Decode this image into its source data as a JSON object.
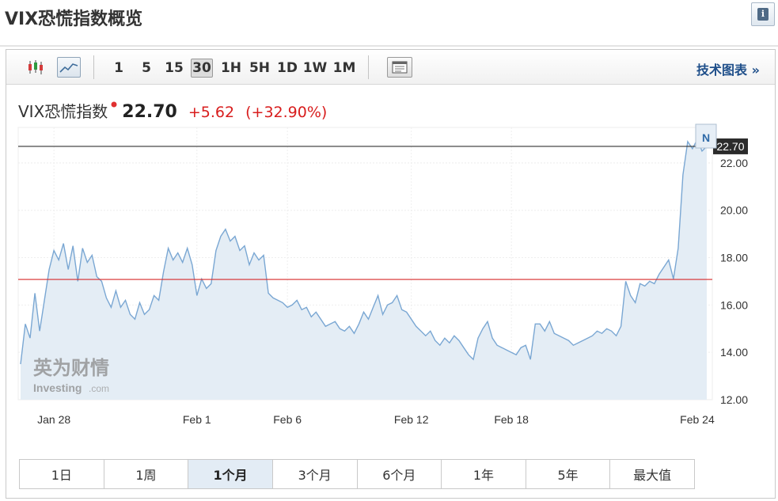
{
  "page": {
    "title": "VIX恐慌指数概览",
    "info_icon": "info-icon"
  },
  "toolbar": {
    "chart_type_icons": [
      "candlestick-icon",
      "line-chart-icon"
    ],
    "intervals": [
      "1",
      "5",
      "15",
      "30",
      "1H",
      "5H",
      "1D",
      "1W",
      "1M"
    ],
    "active_interval": "30",
    "table_icon": "table-view-icon",
    "tech_link": "技术图表 »"
  },
  "quote": {
    "name": "VIX恐慌指数",
    "price": "22.70",
    "change": "+5.62",
    "change_pct": "(+32.90%)",
    "up_color": "#d81d1d"
  },
  "watermark": {
    "cn": "英为财情",
    "en": "Investing",
    "suffix": ".com"
  },
  "chart_data": {
    "type": "line",
    "ylim": [
      12,
      23.5
    ],
    "yticks": [
      "12.00",
      "14.00",
      "16.00",
      "18.00",
      "20.00",
      "22.00"
    ],
    "xticks": [
      "Jan 28",
      "Feb 1",
      "Feb 6",
      "Feb 12",
      "Feb 18",
      "Feb 24"
    ],
    "current_label": "22.70",
    "current_value": 22.7,
    "reference_value": 17.08,
    "marker_label": "N",
    "line_color": "#7aa7d3",
    "fill_color": "#e4edf5",
    "series": [
      {
        "values": [
          13.5,
          15.2,
          14.6,
          16.5,
          14.9,
          16.2,
          17.5,
          18.3,
          17.9,
          18.6,
          17.5,
          18.5,
          17.0,
          18.4,
          17.8,
          18.1,
          17.2,
          17.0,
          16.3,
          15.9,
          16.6,
          15.9,
          16.2,
          15.6,
          15.4,
          16.1,
          15.6,
          15.8,
          16.4,
          16.2,
          17.4,
          18.4,
          17.9,
          18.2,
          17.8,
          18.4,
          17.7,
          16.4,
          17.1,
          16.7,
          16.9,
          18.3,
          18.9,
          19.2,
          18.7,
          18.9,
          18.3,
          18.5,
          17.7,
          18.2,
          17.9,
          18.1,
          16.5,
          16.3,
          16.2,
          16.1,
          15.9,
          16.0,
          16.2,
          15.8,
          15.9,
          15.5,
          15.7,
          15.4,
          15.1,
          15.2,
          15.3,
          15.0,
          14.9,
          15.1,
          14.8,
          15.2,
          15.7,
          15.4,
          15.9,
          16.4,
          15.6,
          16.0,
          16.1,
          16.4,
          15.8,
          15.7,
          15.4,
          15.1,
          14.9,
          14.7,
          14.9,
          14.5,
          14.3,
          14.6,
          14.4,
          14.7,
          14.5,
          14.2,
          13.9,
          13.7,
          14.6,
          15.0,
          15.3,
          14.6,
          14.3,
          14.2,
          14.1,
          14.0,
          13.9,
          14.2,
          14.3,
          13.7,
          15.2,
          15.2,
          14.9,
          15.3,
          14.8,
          14.7,
          14.6,
          14.5,
          14.3,
          14.4,
          14.5,
          14.6,
          14.7,
          14.9,
          14.8,
          15.0,
          14.9,
          14.7,
          15.1,
          17.0,
          16.4,
          16.1,
          16.9,
          16.8,
          17.0,
          16.9,
          17.3,
          17.6,
          17.9,
          17.1,
          18.4,
          21.5,
          22.9,
          22.6,
          23.0,
          22.5,
          22.7
        ]
      }
    ]
  },
  "ranges": {
    "items": [
      "1日",
      "1周",
      "1个月",
      "3个月",
      "6个月",
      "1年",
      "5年",
      "最大值"
    ],
    "active": "1个月"
  }
}
